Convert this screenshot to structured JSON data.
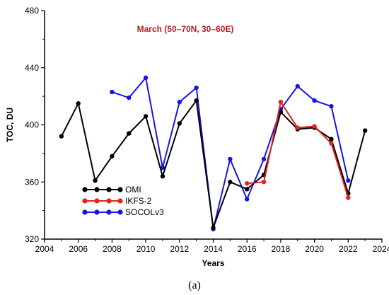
{
  "chart_data": {
    "type": "line",
    "title": "March (50–70N, 30–60E)",
    "xlabel": "Years",
    "ylabel": "TOC, DU",
    "xlim": [
      2004,
      2024
    ],
    "ylim": [
      320,
      480
    ],
    "x_ticks": [
      "2004",
      "2006",
      "2008",
      "2010",
      "2012",
      "2014",
      "2016",
      "2018",
      "2020",
      "2022",
      "2024"
    ],
    "y_ticks": [
      "320",
      "360",
      "400",
      "440",
      "480"
    ],
    "legend_position": "lower-left",
    "panel_label": "(a)",
    "series": [
      {
        "name": "OMI",
        "color": "#000000",
        "x": [
          2005,
          2006,
          2007,
          2008,
          2009,
          2010,
          2011,
          2012,
          2013,
          2014,
          2015,
          2016,
          2017,
          2018,
          2019,
          2020,
          2021,
          2022,
          2023
        ],
        "y": [
          392,
          415,
          361,
          378,
          394,
          406,
          364,
          401,
          417,
          328,
          360,
          355,
          365,
          409,
          397,
          398,
          390,
          352,
          396
        ]
      },
      {
        "name": "IKFS-2",
        "color": "#e0251b",
        "x": [
          2016,
          2017,
          2018,
          2019,
          2020,
          2021,
          2022
        ],
        "y": [
          359,
          360,
          416,
          398,
          399,
          387,
          349
        ]
      },
      {
        "name": "SOCOLv3",
        "color": "#1515e6",
        "x": [
          2008,
          2009,
          2010,
          2011,
          2012,
          2013,
          2014,
          2015,
          2016,
          2017,
          2018,
          2019,
          2020,
          2021,
          2022
        ],
        "y": [
          423,
          419,
          433,
          370,
          416,
          426,
          327,
          376,
          348,
          376,
          411,
          427,
          417,
          413,
          361
        ]
      }
    ]
  }
}
